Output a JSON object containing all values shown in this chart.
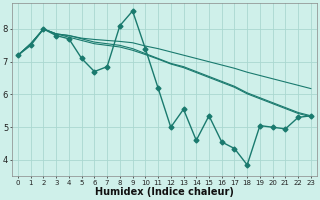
{
  "xlabel": "Humidex (Indice chaleur)",
  "ylabel": "",
  "bg_color": "#cff0ea",
  "grid_color": "#aad8d0",
  "line_color": "#1a7a6e",
  "xlim": [
    -0.5,
    23.5
  ],
  "ylim": [
    3.5,
    8.8
  ],
  "xticks": [
    0,
    1,
    2,
    3,
    4,
    5,
    6,
    7,
    8,
    9,
    10,
    11,
    12,
    13,
    14,
    15,
    16,
    17,
    18,
    19,
    20,
    21,
    22,
    23
  ],
  "yticks": [
    4,
    5,
    6,
    7,
    8
  ],
  "series": [
    [
      7.2,
      7.5,
      8.0,
      7.8,
      7.7,
      7.1,
      6.7,
      6.85,
      8.1,
      8.55,
      7.4,
      6.2,
      5.0,
      5.55,
      4.6,
      5.35,
      4.55,
      4.35,
      3.85,
      5.05,
      5.0,
      4.95,
      5.3,
      5.35
    ],
    [
      7.2,
      7.55,
      8.0,
      7.85,
      7.8,
      7.7,
      7.6,
      7.55,
      7.5,
      7.4,
      7.25,
      7.1,
      6.95,
      6.85,
      6.7,
      6.55,
      6.4,
      6.25,
      6.05,
      5.9,
      5.75,
      5.6,
      5.45,
      5.35
    ],
    [
      7.2,
      7.55,
      8.0,
      7.85,
      7.75,
      7.65,
      7.55,
      7.5,
      7.45,
      7.35,
      7.22,
      7.08,
      6.93,
      6.82,
      6.67,
      6.52,
      6.37,
      6.22,
      6.02,
      5.87,
      5.72,
      5.57,
      5.42,
      5.32
    ],
    [
      7.2,
      7.55,
      8.0,
      7.85,
      7.8,
      7.72,
      7.68,
      7.65,
      7.62,
      7.58,
      7.48,
      7.4,
      7.3,
      7.2,
      7.1,
      7.0,
      6.9,
      6.8,
      6.68,
      6.58,
      6.48,
      6.38,
      6.28,
      6.18
    ]
  ],
  "xlabel_fontsize": 7,
  "tick_fontsize": 5,
  "lw_main": 1.0,
  "lw_trend": 0.8,
  "marker_size": 2.5
}
